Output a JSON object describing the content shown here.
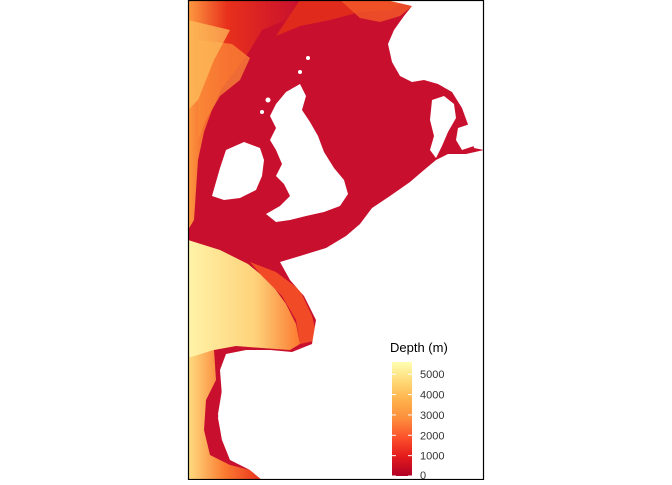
{
  "legend": {
    "title": "Depth (m)",
    "ticks": [
      {
        "value": 5000,
        "label": "5000"
      },
      {
        "value": 4000,
        "label": "4000"
      },
      {
        "value": 3000,
        "label": "3000"
      },
      {
        "value": 2000,
        "label": "2000"
      },
      {
        "value": 1000,
        "label": "1000"
      },
      {
        "value": 0,
        "label": "0"
      }
    ],
    "range": [
      0,
      5600
    ],
    "colors": [
      "#b10026",
      "#e31a1c",
      "#fc4e2a",
      "#fd8d3c",
      "#feb24c",
      "#fed976",
      "#ffffb2"
    ]
  },
  "colors": {
    "shelf": "#c8102e",
    "slope": "#e8301c",
    "mid": "#fb6a2c",
    "deep": "#fdb24c",
    "abyss": "#fff0a0",
    "land": "#ffffff",
    "frame": "#000000"
  }
}
